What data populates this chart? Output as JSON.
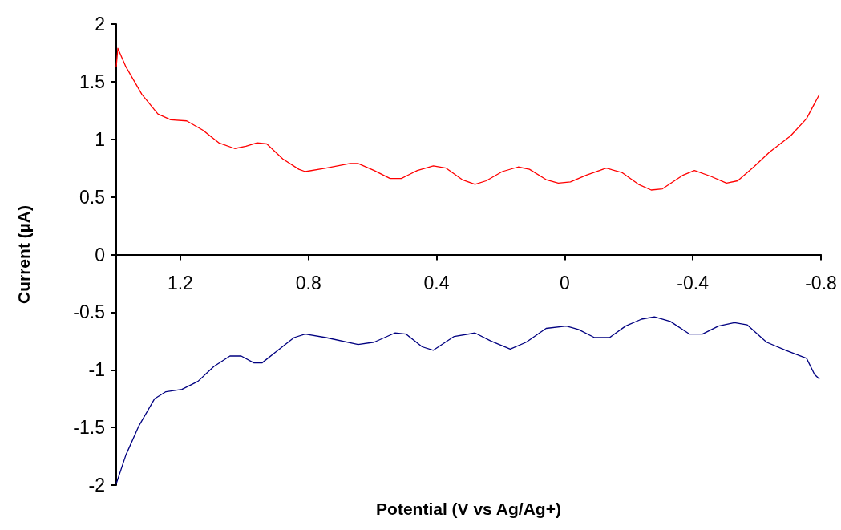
{
  "chart_data": {
    "type": "line",
    "xlabel": "Potential (V vs Ag/Ag+)",
    "ylabel": "Current (µA)",
    "xlim": [
      1.4,
      -0.8
    ],
    "xticks": [
      1.2,
      0.8,
      0.4,
      0,
      -0.4,
      -0.8
    ],
    "ylim": [
      -2,
      2
    ],
    "yticks": [
      -2,
      -1.5,
      -1,
      -0.5,
      0,
      0.5,
      1,
      1.5,
      2
    ],
    "marker": "none",
    "line_style": "solid",
    "series": [
      {
        "color": "#ff0000",
        "x": [
          1.4,
          1.395,
          1.37,
          1.32,
          1.27,
          1.23,
          1.18,
          1.13,
          1.08,
          1.03,
          0.995,
          0.96,
          0.93,
          0.88,
          0.83,
          0.81,
          0.745,
          0.67,
          0.645,
          0.595,
          0.545,
          0.51,
          0.46,
          0.41,
          0.37,
          0.32,
          0.28,
          0.245,
          0.195,
          0.145,
          0.11,
          0.058,
          0.02,
          -0.018,
          -0.068,
          -0.13,
          -0.18,
          -0.23,
          -0.27,
          -0.305,
          -0.37,
          -0.405,
          -0.455,
          -0.505,
          -0.54,
          -0.59,
          -0.64,
          -0.705,
          -0.755,
          -0.795
        ],
        "values": [
          1.63,
          1.79,
          1.63,
          1.39,
          1.22,
          1.17,
          1.16,
          1.08,
          0.97,
          0.92,
          0.94,
          0.97,
          0.96,
          0.83,
          0.74,
          0.72,
          0.75,
          0.79,
          0.79,
          0.73,
          0.66,
          0.66,
          0.73,
          0.77,
          0.75,
          0.65,
          0.61,
          0.64,
          0.72,
          0.76,
          0.74,
          0.65,
          0.62,
          0.63,
          0.69,
          0.75,
          0.71,
          0.61,
          0.56,
          0.57,
          0.69,
          0.73,
          0.68,
          0.62,
          0.64,
          0.76,
          0.89,
          1.03,
          1.18,
          1.39
        ]
      },
      {
        "color": "#000080",
        "x": [
          1.4,
          1.37,
          1.33,
          1.28,
          1.245,
          1.195,
          1.145,
          1.095,
          1.045,
          1.01,
          0.97,
          0.945,
          0.895,
          0.845,
          0.81,
          0.745,
          0.645,
          0.595,
          0.53,
          0.495,
          0.445,
          0.41,
          0.345,
          0.28,
          0.23,
          0.17,
          0.12,
          0.058,
          -0.005,
          -0.043,
          -0.093,
          -0.14,
          -0.19,
          -0.24,
          -0.28,
          -0.33,
          -0.39,
          -0.43,
          -0.48,
          -0.53,
          -0.57,
          -0.63,
          -0.69,
          -0.755,
          -0.78,
          -0.795
        ],
        "values": [
          -1.99,
          -1.74,
          -1.49,
          -1.25,
          -1.19,
          -1.17,
          -1.1,
          -0.97,
          -0.88,
          -0.88,
          -0.94,
          -0.94,
          -0.83,
          -0.72,
          -0.69,
          -0.72,
          -0.78,
          -0.76,
          -0.68,
          -0.69,
          -0.8,
          -0.83,
          -0.71,
          -0.68,
          -0.75,
          -0.82,
          -0.76,
          -0.64,
          -0.62,
          -0.65,
          -0.72,
          -0.72,
          -0.62,
          -0.56,
          -0.54,
          -0.58,
          -0.69,
          -0.69,
          -0.62,
          -0.59,
          -0.61,
          -0.76,
          -0.83,
          -0.9,
          -1.04,
          -1.08
        ]
      }
    ]
  }
}
